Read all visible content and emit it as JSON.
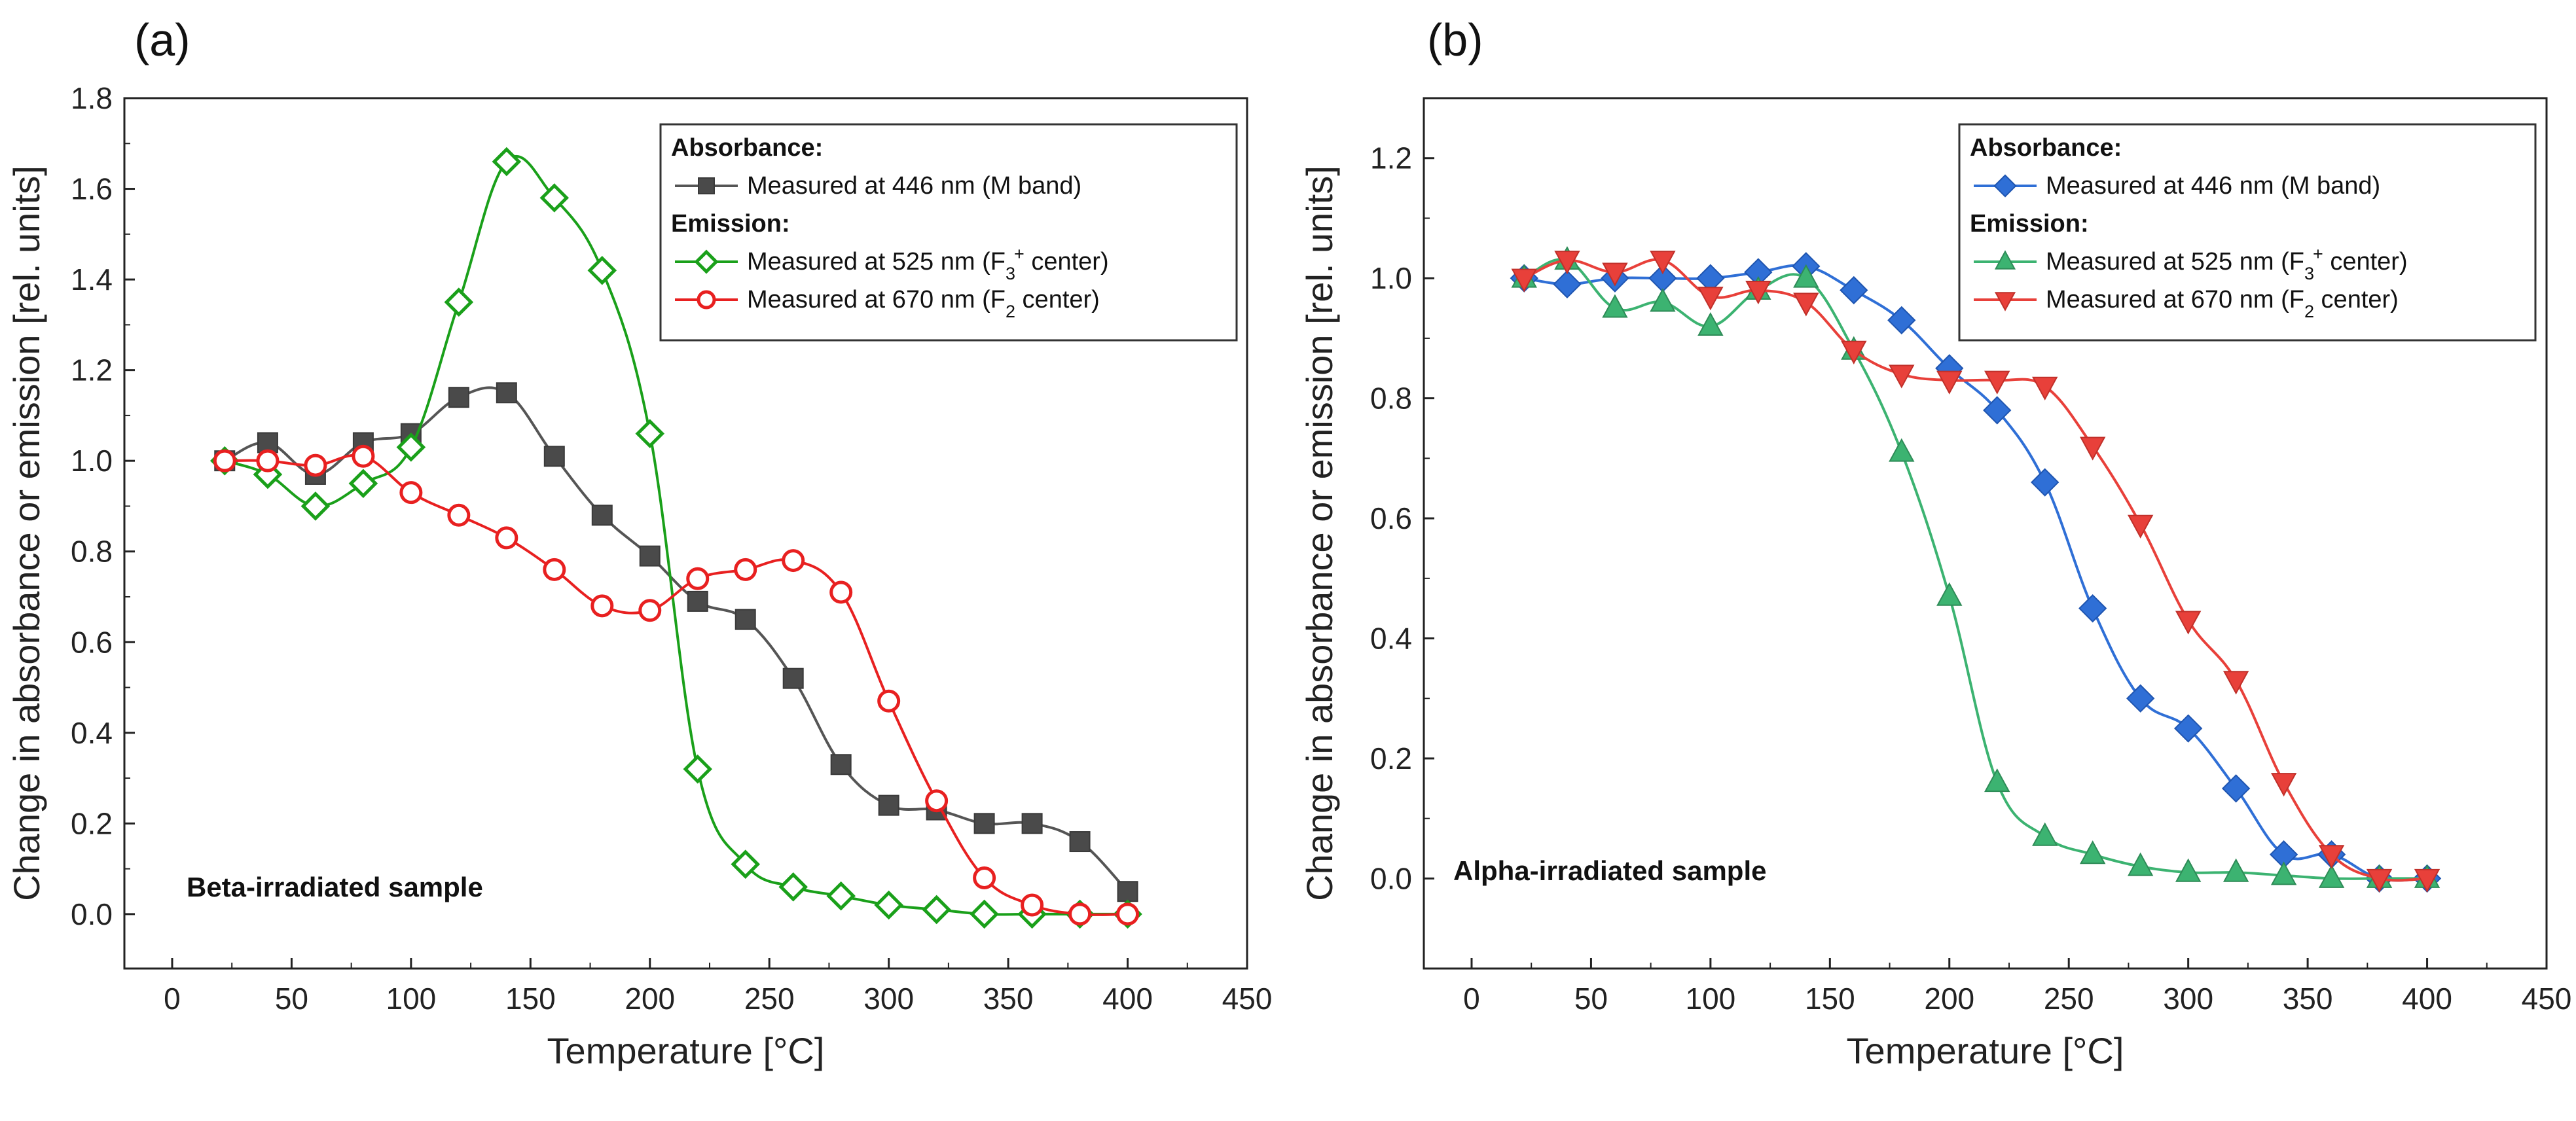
{
  "chart_data": [
    {
      "type": "line",
      "panel_label": "(a)",
      "xlabel": "Temperature [°C]",
      "ylabel": "Change in absorbance or emission [rel. units]",
      "xlim": [
        -20,
        450
      ],
      "ylim": [
        -0.12,
        1.8
      ],
      "xticks": [
        0,
        50,
        100,
        150,
        200,
        250,
        300,
        350,
        400,
        450
      ],
      "yticks": [
        0.0,
        0.2,
        0.4,
        0.6,
        0.8,
        1.0,
        1.2,
        1.4,
        1.6,
        1.8
      ],
      "ytick_labels": [
        "0.0",
        "0.2",
        "0.4",
        "0.6",
        "0.8",
        "1.0",
        "1.2",
        "1.4",
        "1.6",
        "1.8"
      ],
      "grid": false,
      "annotation": "Beta-irradiated sample",
      "legend": {
        "position": "top-right",
        "absorbance_heading": "Absorbance:",
        "emission_heading": "Emission:"
      },
      "series": [
        {
          "name": "Measured at 446 nm (M band)",
          "group": "absorbance",
          "color": "#555555",
          "marker": "square-filled",
          "x": [
            22,
            40,
            60,
            80,
            100,
            120,
            140,
            160,
            180,
            200,
            220,
            240,
            260,
            280,
            300,
            320,
            340,
            360,
            380,
            400
          ],
          "values": [
            1.0,
            1.04,
            0.97,
            1.04,
            1.06,
            1.14,
            1.15,
            1.01,
            0.88,
            0.79,
            0.69,
            0.65,
            0.52,
            0.33,
            0.24,
            0.23,
            0.2,
            0.2,
            0.16,
            0.05
          ]
        },
        {
          "name_prefix": "Measured at 525 nm (F",
          "name_sub": "3",
          "name_sup": "+",
          "name_suffix": " center)",
          "group": "emission",
          "color": "#1aa01a",
          "marker": "diamond-open",
          "x": [
            22,
            40,
            60,
            80,
            100,
            120,
            140,
            160,
            180,
            200,
            220,
            240,
            260,
            280,
            300,
            320,
            340,
            360,
            380,
            400
          ],
          "values": [
            1.0,
            0.97,
            0.9,
            0.95,
            1.03,
            1.35,
            1.66,
            1.58,
            1.42,
            1.06,
            0.32,
            0.11,
            0.06,
            0.04,
            0.02,
            0.01,
            0.0,
            0.0,
            0.0,
            0.0
          ]
        },
        {
          "name_prefix": "Measured at 670 nm (F",
          "name_sub": "2",
          "name_suffix": " center)",
          "group": "emission",
          "color": "#e82020",
          "marker": "circle-open",
          "x": [
            22,
            40,
            60,
            80,
            100,
            120,
            140,
            160,
            180,
            200,
            220,
            240,
            260,
            280,
            300,
            320,
            340,
            360,
            380,
            400
          ],
          "values": [
            1.0,
            1.0,
            0.99,
            1.01,
            0.93,
            0.88,
            0.83,
            0.76,
            0.68,
            0.67,
            0.74,
            0.76,
            0.78,
            0.71,
            0.47,
            0.25,
            0.08,
            0.02,
            0.0,
            0.0
          ]
        }
      ]
    },
    {
      "type": "line",
      "panel_label": "(b)",
      "xlabel": "Temperature [°C]",
      "ylabel": "Change in absorbance or emission [rel. units]",
      "xlim": [
        -20,
        450
      ],
      "ylim": [
        -0.15,
        1.3
      ],
      "xticks": [
        0,
        50,
        100,
        150,
        200,
        250,
        300,
        350,
        400,
        450
      ],
      "yticks": [
        0.0,
        0.2,
        0.4,
        0.6,
        0.8,
        1.0,
        1.2
      ],
      "ytick_labels": [
        "0.0",
        "0.2",
        "0.4",
        "0.6",
        "0.8",
        "1.0",
        "1.2"
      ],
      "grid": false,
      "annotation": "Alpha-irradiated sample",
      "legend": {
        "position": "top-right",
        "absorbance_heading": "Absorbance:",
        "emission_heading": "Emission:"
      },
      "series": [
        {
          "name": "Measured at 446 nm (M band)",
          "group": "absorbance",
          "color": "#2f6fd6",
          "marker": "diamond-filled",
          "x": [
            22,
            40,
            60,
            80,
            100,
            120,
            140,
            160,
            180,
            200,
            220,
            240,
            260,
            280,
            300,
            320,
            340,
            360,
            380,
            400
          ],
          "values": [
            1.0,
            0.99,
            1.0,
            1.0,
            1.0,
            1.01,
            1.02,
            0.98,
            0.93,
            0.85,
            0.78,
            0.66,
            0.45,
            0.3,
            0.25,
            0.15,
            0.04,
            0.04,
            0.0,
            0.0
          ]
        },
        {
          "name_prefix": "Measured at 525 nm (F",
          "name_sub": "3",
          "name_sup": "+",
          "name_suffix": " center)",
          "group": "emission",
          "color": "#3cb371",
          "marker": "triangle-up-filled",
          "x": [
            22,
            40,
            60,
            80,
            100,
            120,
            140,
            160,
            180,
            200,
            220,
            240,
            260,
            280,
            300,
            320,
            340,
            360,
            380,
            400
          ],
          "values": [
            1.0,
            1.03,
            0.95,
            0.96,
            0.92,
            0.98,
            1.0,
            0.88,
            0.71,
            0.47,
            0.16,
            0.07,
            0.04,
            0.02,
            0.01,
            0.01,
            0.005,
            0.0,
            0.0,
            0.0
          ]
        },
        {
          "name_prefix": "Measured at 670 nm (F",
          "name_sub": "2",
          "name_suffix": " center)",
          "group": "emission",
          "color": "#e8403a",
          "marker": "triangle-down-filled",
          "x": [
            22,
            40,
            60,
            80,
            100,
            120,
            140,
            160,
            180,
            200,
            220,
            240,
            260,
            280,
            300,
            320,
            340,
            360,
            380,
            400
          ],
          "values": [
            1.0,
            1.03,
            1.01,
            1.03,
            0.97,
            0.98,
            0.96,
            0.88,
            0.84,
            0.83,
            0.83,
            0.82,
            0.72,
            0.59,
            0.43,
            0.33,
            0.16,
            0.04,
            0.0,
            0.0
          ]
        }
      ]
    }
  ]
}
